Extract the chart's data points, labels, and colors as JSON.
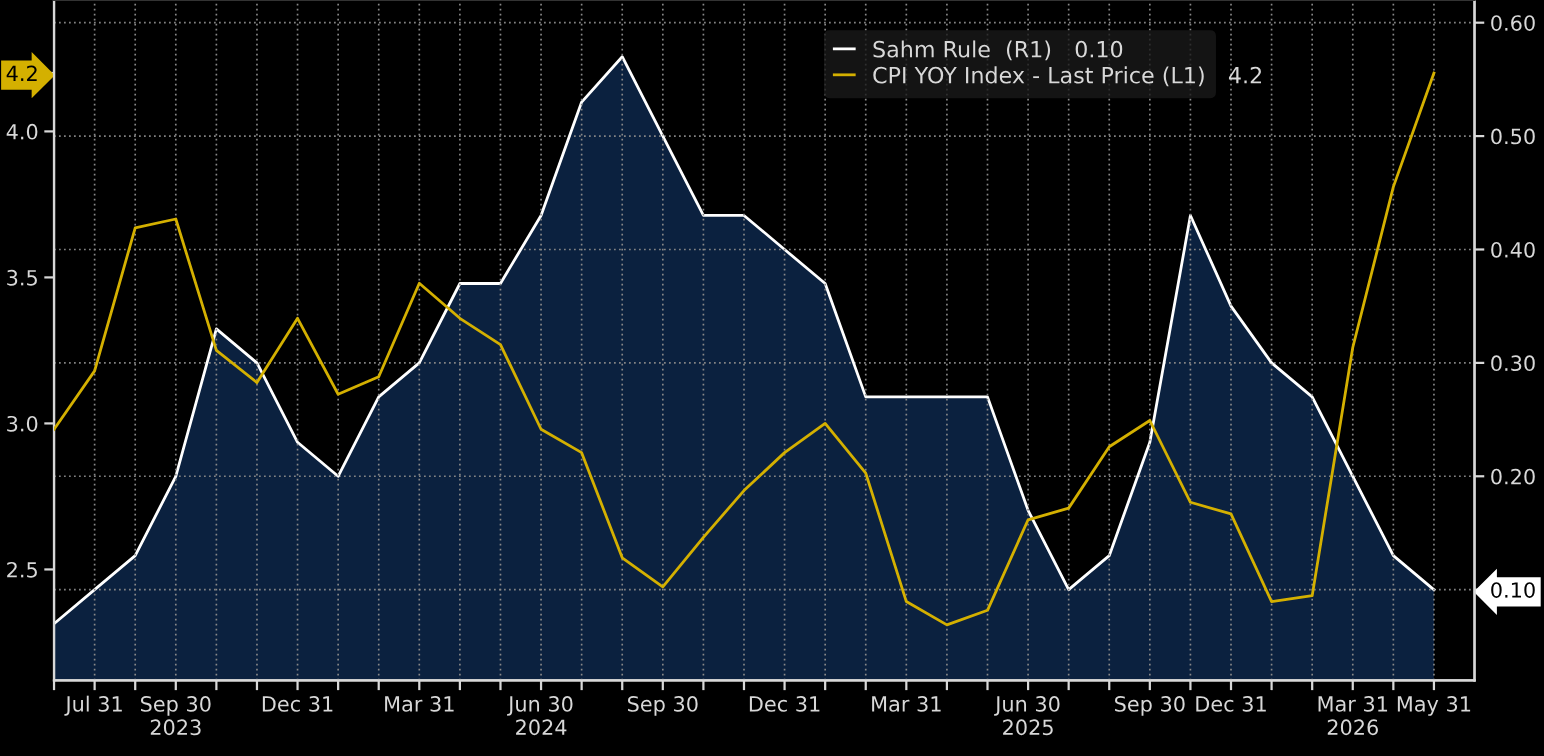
{
  "chart_data": {
    "type": "line",
    "categories": [
      null,
      "Jul 31",
      null,
      "Sep 30\n2023",
      null,
      null,
      "Dec 31",
      null,
      null,
      "Mar 31",
      null,
      null,
      "Jun 30\n2024",
      null,
      null,
      "Sep 30",
      null,
      null,
      "Dec 31",
      null,
      null,
      "Mar 31",
      null,
      null,
      "Jun 30\n2025",
      null,
      null,
      "Sep 30",
      null,
      "Dec 31",
      null,
      null,
      "Mar 31\n2026",
      null,
      "May 31"
    ],
    "series": [
      {
        "name": "Sahm Rule  (R1)",
        "type": "area",
        "axis": "y2",
        "color": "#ffffff",
        "values": [
          0.07,
          0.1,
          0.13,
          0.2,
          0.33,
          0.3,
          0.23,
          0.2,
          0.27,
          0.3,
          0.37,
          0.37,
          0.43,
          0.53,
          0.57,
          0.5,
          0.43,
          0.43,
          0.4,
          0.37,
          0.27,
          0.27,
          0.27,
          0.27,
          0.17,
          0.1,
          0.13,
          0.23,
          0.43,
          0.35,
          0.3,
          0.27,
          0.2,
          0.13,
          0.1
        ]
      },
      {
        "name": "CPI YOY Index - Last Price (L1)",
        "color": "#d4b000",
        "values": [
          2.98,
          3.18,
          3.67,
          3.7,
          3.25,
          3.14,
          3.36,
          3.1,
          3.16,
          3.48,
          3.36,
          3.27,
          2.98,
          2.9,
          2.54,
          2.44,
          2.61,
          2.77,
          2.9,
          3.0,
          2.83,
          2.39,
          2.31,
          2.36,
          2.67,
          2.71,
          2.92,
          3.01,
          2.73,
          2.69,
          2.39,
          2.41,
          3.26,
          3.81,
          4.2
        ]
      }
    ],
    "ylim": [
      2.12,
      4.45
    ],
    "yticks": [
      {
        "value": 2.5,
        "label": "2.5"
      },
      {
        "value": 3.0,
        "label": "3.0"
      },
      {
        "value": 3.5,
        "label": "3.5"
      },
      {
        "value": 4.0,
        "label": "4.0"
      },
      {
        "value": 4.2,
        "label": "4.2"
      }
    ],
    "y2lim": [
      0.02,
      0.62
    ],
    "y2ticks": [
      {
        "value": 0.1,
        "label": "0.10"
      },
      {
        "value": 0.2,
        "label": "0.20"
      },
      {
        "value": 0.3,
        "label": "0.30"
      },
      {
        "value": 0.4,
        "label": "0.40"
      },
      {
        "value": 0.5,
        "label": "0.50"
      },
      {
        "value": 0.6,
        "label": "0.60"
      }
    ],
    "grid": true,
    "legend": "top"
  }
}
